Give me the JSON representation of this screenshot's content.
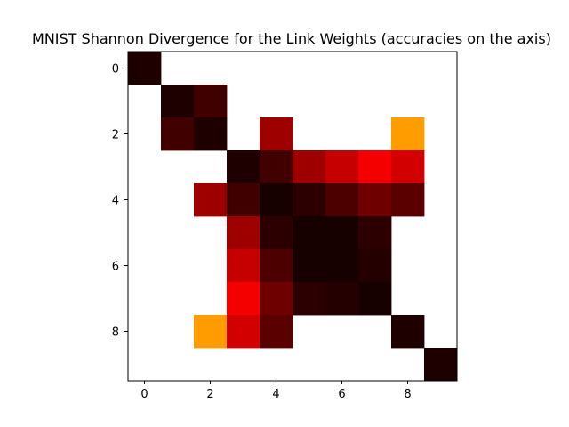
{
  "chart_data": {
    "type": "heatmap",
    "title": "MNIST Shannon Divergence for the Link Weights (accuracies on the axis)",
    "xlabel": "",
    "ylabel": "",
    "x_ticks": [
      "0",
      "2",
      "4",
      "6",
      "8"
    ],
    "y_ticks": [
      "0",
      "2",
      "4",
      "6",
      "8"
    ],
    "x_tick_positions": [
      0,
      2,
      4,
      6,
      8
    ],
    "y_tick_positions": [
      0,
      2,
      4,
      6,
      8
    ],
    "xlim": [
      -0.5,
      9.5
    ],
    "ylim": [
      9.5,
      -0.5
    ],
    "grid": false,
    "colormap": "hot",
    "color_range": [
      0,
      1
    ],
    "rows": 10,
    "cols": 10,
    "values": [
      [
        0.03,
        null,
        null,
        null,
        null,
        null,
        null,
        null,
        null,
        null
      ],
      [
        null,
        0.03,
        0.08,
        null,
        null,
        null,
        null,
        null,
        null,
        null
      ],
      [
        null,
        0.08,
        0.03,
        null,
        0.22,
        null,
        null,
        null,
        0.6,
        null
      ],
      [
        null,
        null,
        null,
        0.03,
        0.08,
        0.22,
        0.28,
        0.35,
        0.3,
        null
      ],
      [
        null,
        null,
        0.22,
        0.08,
        0.02,
        0.05,
        0.1,
        0.15,
        0.12,
        null
      ],
      [
        null,
        null,
        null,
        0.22,
        0.05,
        0.02,
        0.02,
        0.05,
        null,
        null
      ],
      [
        null,
        null,
        null,
        0.28,
        0.1,
        0.02,
        0.02,
        0.04,
        null,
        null
      ],
      [
        null,
        null,
        null,
        0.35,
        0.15,
        0.05,
        0.04,
        0.02,
        null,
        null
      ],
      [
        null,
        null,
        0.6,
        0.3,
        0.12,
        null,
        null,
        null,
        0.03,
        null
      ],
      [
        null,
        null,
        null,
        null,
        null,
        null,
        null,
        null,
        null,
        0.03
      ]
    ]
  }
}
